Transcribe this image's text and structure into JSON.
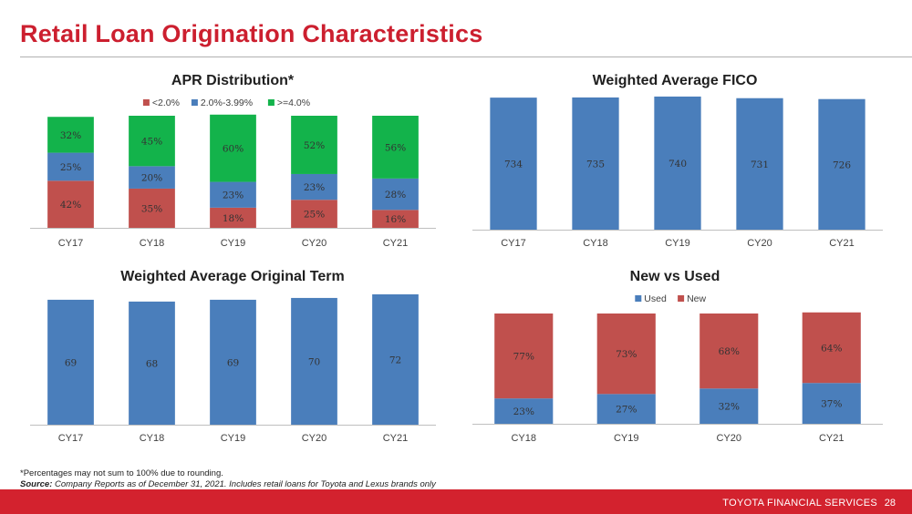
{
  "page": {
    "title": "Retail Loan Origination Characteristics",
    "footnote_line1": "*Percentages may not sum to 100% due to rounding.",
    "source_label": "Source:",
    "source_text": "Company Reports as of December 31, 2021. Includes retail loans for Toyota and Lexus brands only",
    "footer_brand": "TOYOTA FINANCIAL SERVICES",
    "page_number": "28"
  },
  "colors": {
    "accent_red": "#d3222e",
    "bar_blue": "#4a7ebb",
    "bar_red": "#c0504d",
    "bar_green": "#13b34b"
  },
  "chart_data": [
    {
      "id": "apr",
      "type": "bar",
      "stacked": true,
      "title": "APR Distribution*",
      "categories": [
        "CY17",
        "CY18",
        "CY19",
        "CY20",
        "CY21"
      ],
      "series": [
        {
          "name": "<2.0%",
          "color": "#c0504d",
          "values": [
            42,
            35,
            18,
            25,
            16
          ],
          "labels": [
            "42%",
            "35%",
            "18%",
            "25%",
            "16%"
          ]
        },
        {
          "name": "2.0%-3.99%",
          "color": "#4a7ebb",
          "values": [
            25,
            20,
            23,
            23,
            28
          ],
          "labels": [
            "25%",
            "20%",
            "23%",
            "23%",
            "28%"
          ]
        },
        {
          "name": ">=4.0%",
          "color": "#13b34b",
          "values": [
            32,
            45,
            60,
            52,
            56
          ],
          "labels": [
            "32%",
            "45%",
            "60%",
            "52%",
            "56%"
          ]
        }
      ],
      "legend": "top",
      "ylim": [
        0,
        100
      ],
      "grid": false
    },
    {
      "id": "fico",
      "type": "bar",
      "title": "Weighted Average FICO",
      "categories": [
        "CY17",
        "CY18",
        "CY19",
        "CY20",
        "CY21"
      ],
      "values": [
        734,
        735,
        740,
        731,
        726
      ],
      "labels": [
        "734",
        "735",
        "740",
        "731",
        "726"
      ],
      "color": "#4a7ebb",
      "ylim": [
        0,
        760
      ],
      "grid": false
    },
    {
      "id": "term",
      "type": "bar",
      "title": "Weighted Average Original Term",
      "categories": [
        "CY17",
        "CY18",
        "CY19",
        "CY20",
        "CY21"
      ],
      "values": [
        69,
        68,
        69,
        70,
        72
      ],
      "labels": [
        "69",
        "68",
        "69",
        "70",
        "72"
      ],
      "color": "#4a7ebb",
      "ylim": [
        0,
        75
      ],
      "grid": false
    },
    {
      "id": "newused",
      "type": "bar",
      "stacked": true,
      "title": "New vs Used",
      "categories": [
        "CY18",
        "CY19",
        "CY20",
        "CY21"
      ],
      "series": [
        {
          "name": "Used",
          "color": "#4a7ebb",
          "values": [
            23,
            27,
            32,
            37
          ],
          "labels": [
            "23%",
            "27%",
            "32%",
            "37%"
          ]
        },
        {
          "name": "New",
          "color": "#c0504d",
          "values": [
            77,
            73,
            68,
            64
          ],
          "labels": [
            "77%",
            "73%",
            "68%",
            "64%"
          ]
        }
      ],
      "legend": "top",
      "ylim": [
        0,
        100
      ],
      "grid": false
    }
  ]
}
